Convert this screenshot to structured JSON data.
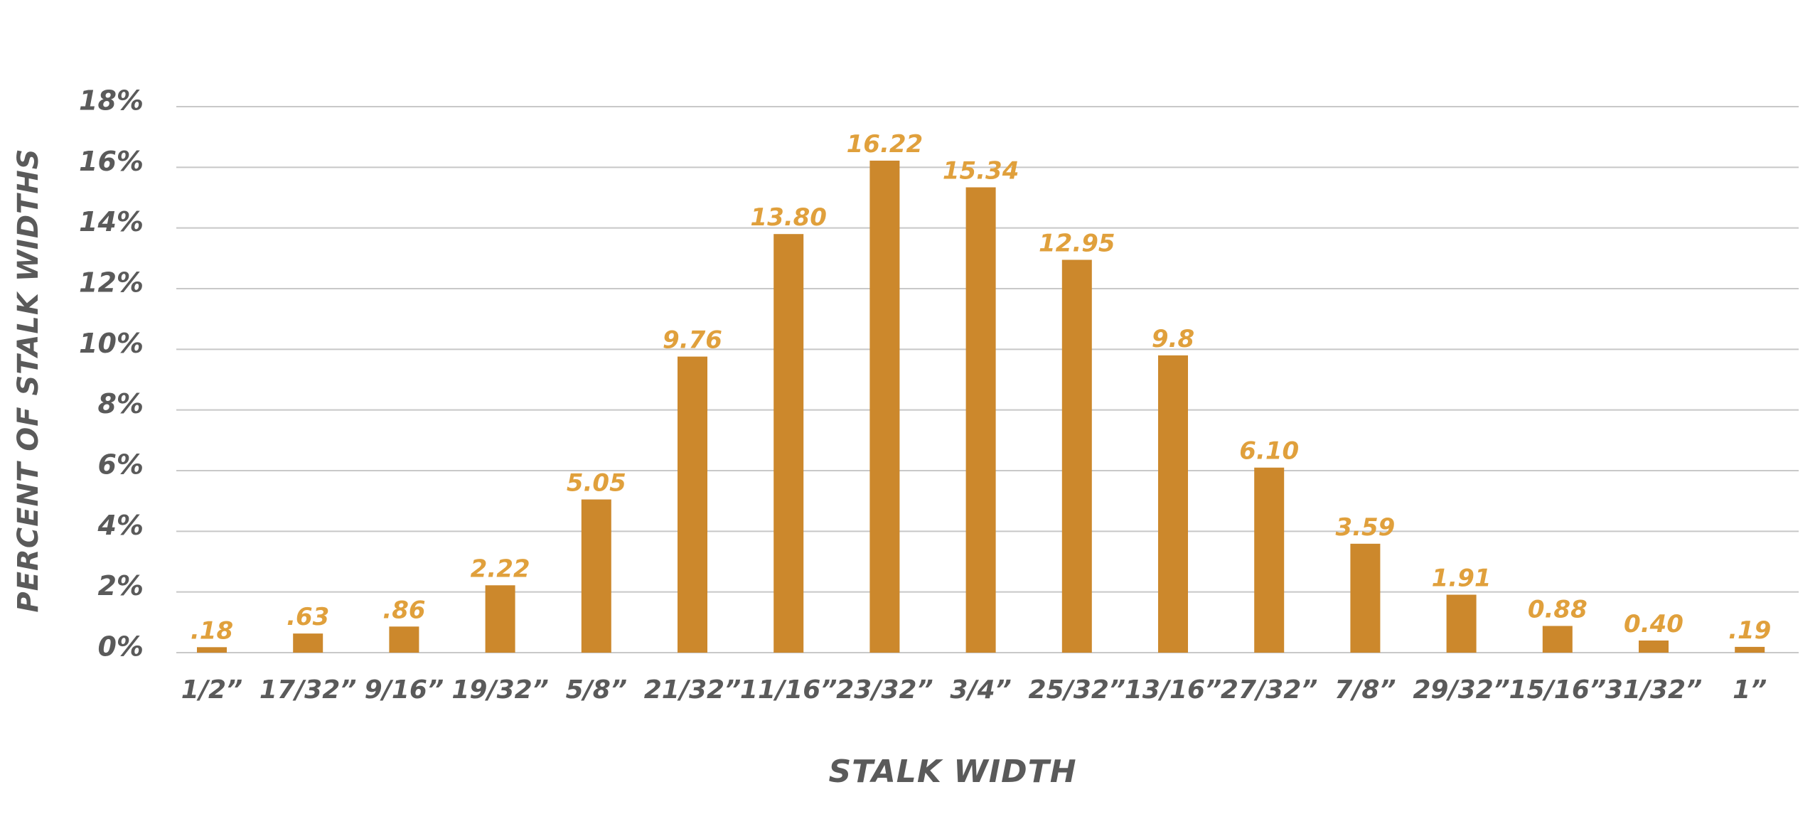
{
  "chart_data": {
    "type": "bar",
    "xlabel": "STALK WIDTH",
    "ylabel": "PERCENT OF STALK WIDTHS",
    "ylim": [
      0,
      18
    ],
    "yticks": [
      "0%",
      "2%",
      "4%",
      "6%",
      "8%",
      "10%",
      "12%",
      "14%",
      "16%",
      "18%"
    ],
    "categories": [
      "1/2”",
      "17/32”",
      "9/16”",
      "19/32”",
      "5/8”",
      "21/32”",
      "11/16”",
      "23/32”",
      "3/4”",
      "25/32”",
      "13/16”",
      "27/32”",
      "7/8”",
      "29/32”",
      "15/16”",
      "31/32”",
      "1”"
    ],
    "values": [
      0.18,
      0.63,
      0.86,
      2.22,
      5.05,
      9.76,
      13.8,
      16.22,
      15.34,
      12.95,
      9.8,
      6.1,
      3.59,
      1.91,
      0.88,
      0.4,
      0.19
    ],
    "value_labels": [
      ".18",
      ".63",
      ".86",
      "2.22",
      "5.05",
      "9.76",
      "13.80",
      "16.22",
      "15.34",
      "12.95",
      "9.8",
      "6.10",
      "3.59",
      "1.91",
      "0.88",
      "0.40",
      ".19"
    ],
    "grid": true,
    "colors": {
      "bar": "#cc882c",
      "value_label": "#e0a03c",
      "text": "#5a5a5a",
      "grid": "#c8c8c8"
    }
  }
}
